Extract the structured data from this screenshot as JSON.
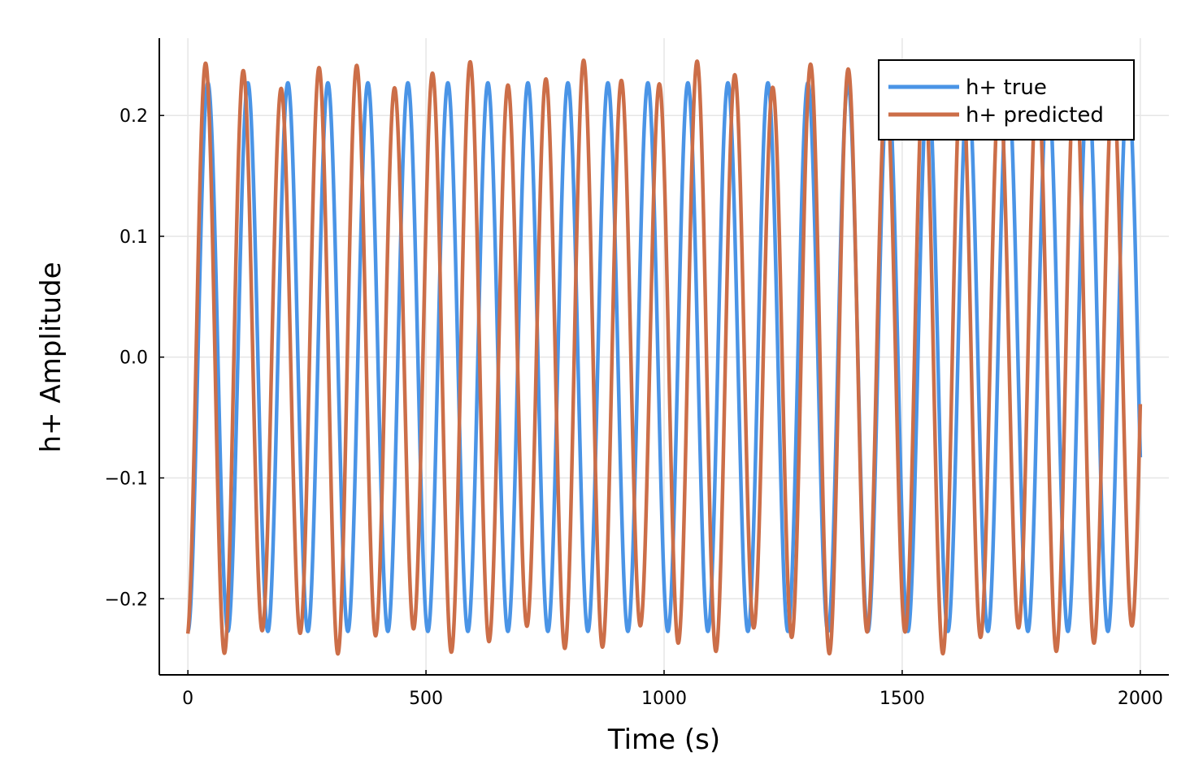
{
  "chart_data": {
    "type": "line",
    "title": "",
    "xlabel": "Time (s)",
    "ylabel": "h+ Amplitude",
    "xlim": [
      -60,
      2060
    ],
    "ylim": [
      -0.263,
      0.264
    ],
    "x_ticks": [
      0,
      500,
      1000,
      1500,
      2000
    ],
    "x_tick_labels": [
      "0",
      "500",
      "1000",
      "1500",
      "2000"
    ],
    "y_ticks": [
      -0.2,
      -0.1,
      0.0,
      0.1,
      0.2
    ],
    "y_tick_labels": [
      "−0.2",
      "−0.1",
      "0.0",
      "0.1",
      "0.2"
    ],
    "grid": true,
    "legend_position": "top-right",
    "series": [
      {
        "name": "h+ true",
        "color": "#4a94e6",
        "model": {
          "amplitude": 0.227,
          "period": 84.0,
          "phase_deg": -90,
          "envelope_mod": 0.0
        },
        "x_range": [
          0,
          2000
        ]
      },
      {
        "name": "h+ predicted",
        "color": "#cc6e48",
        "model": {
          "amplitude": 0.234,
          "period": 79.4,
          "phase_deg": -78,
          "envelope_mod": 0.05,
          "envelope_period": 255
        },
        "x_range": [
          0,
          2000
        ]
      }
    ]
  }
}
